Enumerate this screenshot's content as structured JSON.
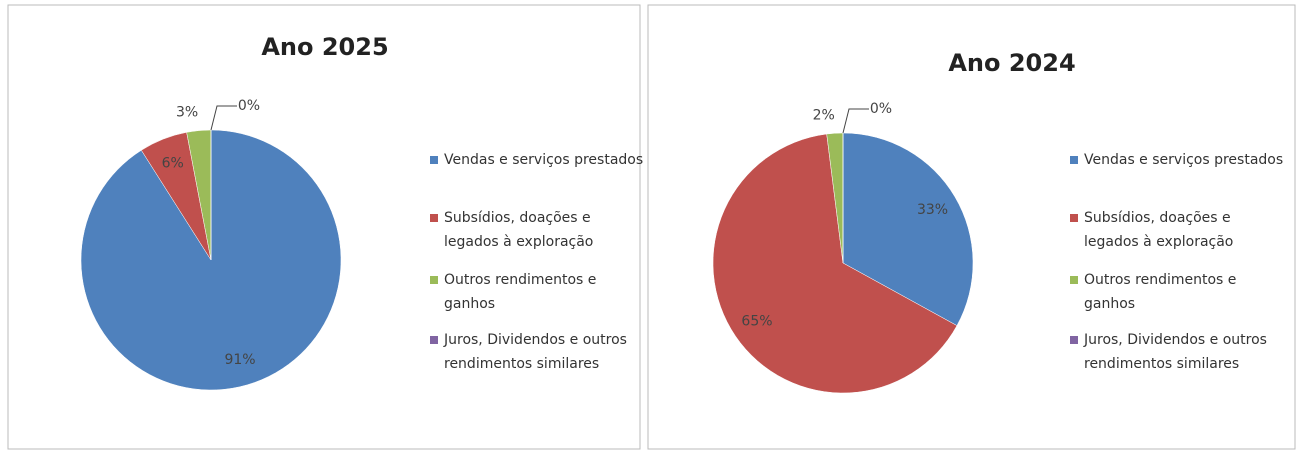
{
  "chart_data": [
    {
      "type": "pie",
      "title": "Ano 2025",
      "categories": [
        "Vendas e serviços prestados",
        "Subsídios, doações e legados à exploração",
        "Outros rendimentos e ganhos",
        "Juros, Dividendos e outros rendimentos similares"
      ],
      "values": [
        91,
        6,
        3,
        0
      ],
      "value_labels": [
        "91%",
        "6%",
        "3%",
        "0%"
      ],
      "colors": [
        "#4f81bd",
        "#c0504d",
        "#9bbb59",
        "#8064a2"
      ],
      "legend": "right"
    },
    {
      "type": "pie",
      "title": "Ano 2024",
      "categories": [
        "Vendas e serviços prestados",
        "Subsídios, doações e legados à exploração",
        "Outros rendimentos e ganhos",
        "Juros, Dividendos e outros rendimentos similares"
      ],
      "values": [
        33,
        65,
        2,
        0
      ],
      "value_labels": [
        "33%",
        "65%",
        "2%",
        "0%"
      ],
      "colors": [
        "#4f81bd",
        "#c0504d",
        "#9bbb59",
        "#8064a2"
      ],
      "legend": "right"
    }
  ]
}
